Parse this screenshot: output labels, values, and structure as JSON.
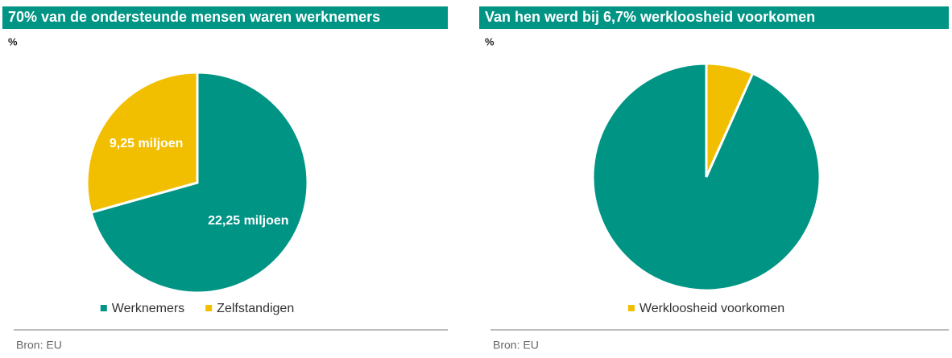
{
  "chart_data": [
    {
      "type": "pie",
      "title": "70% van de ondersteunde mensen waren werknemers",
      "unit": "%",
      "categories": [
        "Werknemers",
        "Zelfstandigen"
      ],
      "values": [
        22.25,
        9.25
      ],
      "value_labels": [
        "22,25 miljoen",
        "9,25 miljoen"
      ],
      "colors": [
        "#009485",
        "#f2bf00"
      ],
      "legend": "bottom",
      "source": "Bron: EU"
    },
    {
      "type": "pie",
      "title": "Van hen werd bij 6,7% werkloosheid voorkomen",
      "unit": "%",
      "categories": [
        "Werkloosheid voorkomen",
        null
      ],
      "values": [
        6.7,
        93.3
      ],
      "colors": [
        "#f2bf00",
        "#009485"
      ],
      "legend": "bottom",
      "source": "Bron: EU"
    }
  ]
}
